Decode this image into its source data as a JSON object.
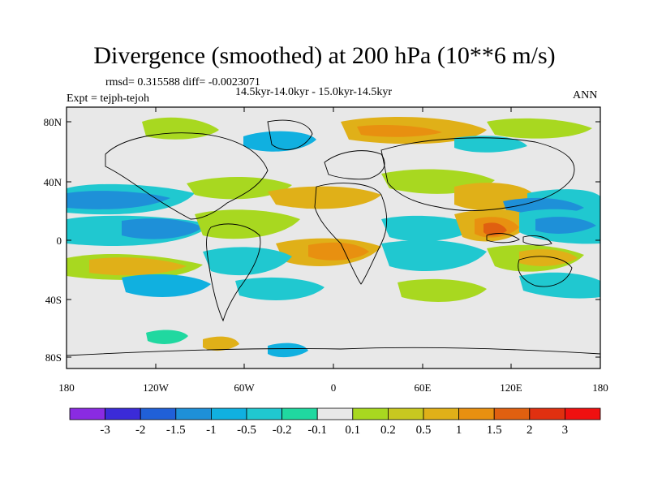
{
  "title": "Divergence (smoothed) at 200 hPa (10**6 m/s)",
  "rmsd_line": "rmsd= 0.315588 diff= -0.0023071",
  "period_line": "14.5kyr-14.0kyr - 15.0kyr-14.5kyr",
  "expt_line": "Expt = tejph-tejoh",
  "season": "ANN",
  "lat_ticks": [
    "80N",
    "40N",
    "0",
    "40S",
    "80S"
  ],
  "lon_ticks": [
    "180",
    "120W",
    "60W",
    "0",
    "60E",
    "120E",
    "180"
  ],
  "colorbar": {
    "labels": [
      "-3",
      "-2",
      "-1.5",
      "-1",
      "-0.5",
      "-0.2",
      "-0.1",
      "0.1",
      "0.2",
      "0.5",
      "1",
      "1.5",
      "2",
      "3"
    ],
    "colors": [
      "#8a2be2",
      "#3b2bd8",
      "#2060d8",
      "#1e90d8",
      "#10b0e0",
      "#20c8d0",
      "#20d8a0",
      "#e8e8e8",
      "#a8d820",
      "#c8c820",
      "#e0b018",
      "#e89010",
      "#e06010",
      "#e03010",
      "#f01010"
    ]
  },
  "palette": {
    "land_bg": "#e8e8e8",
    "frame": "#000000"
  }
}
